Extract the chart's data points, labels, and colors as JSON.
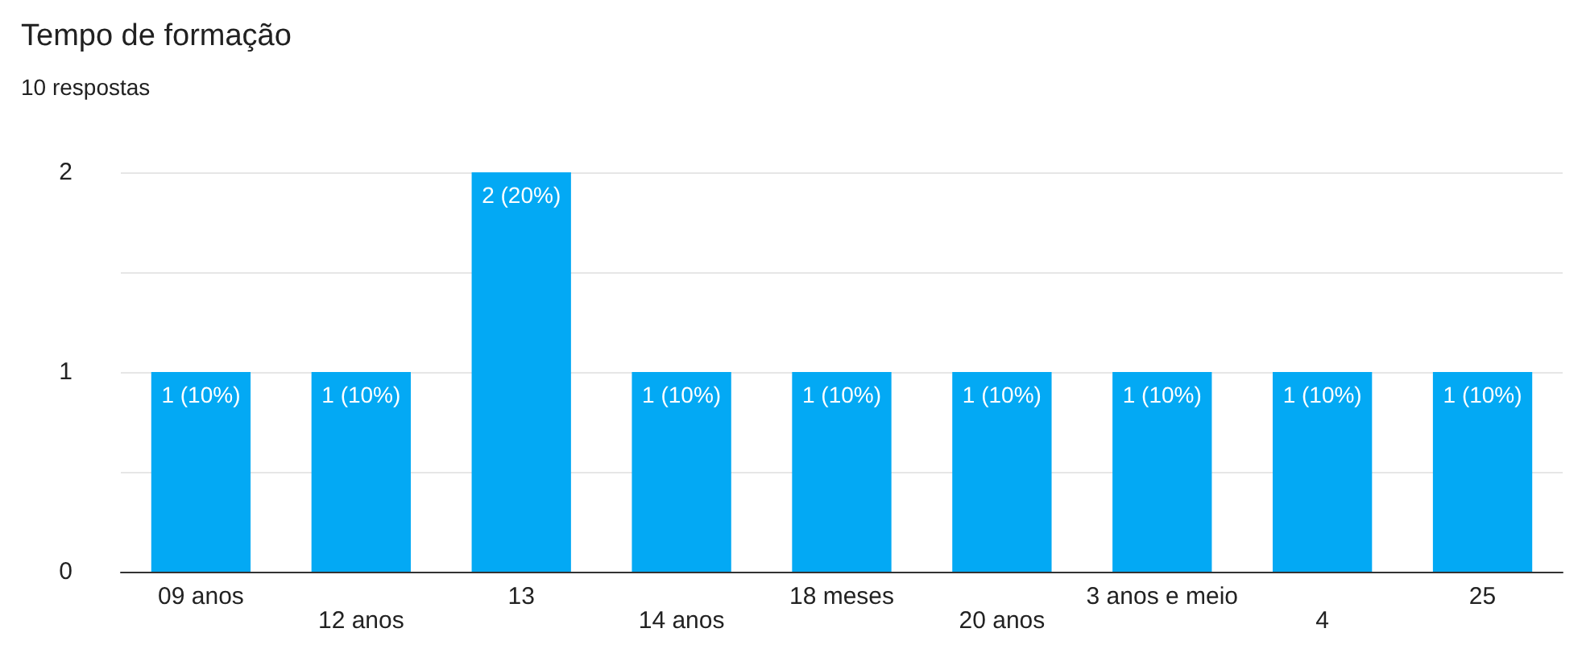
{
  "chart_data": {
    "type": "bar",
    "title": "Tempo de formação",
    "subtitle": "10 respostas",
    "categories": [
      "09 anos",
      "12 anos",
      "13",
      "14 anos",
      "18 meses",
      "20 anos",
      "3 anos e meio",
      "4",
      "25"
    ],
    "values": [
      1,
      1,
      2,
      1,
      1,
      1,
      1,
      1,
      1
    ],
    "value_labels": [
      "1 (10%)",
      "1 (10%)",
      "2 (20%)",
      "1 (10%)",
      "1 (10%)",
      "1 (10%)",
      "1 (10%)",
      "1 (10%)",
      "1 (10%)"
    ],
    "color": "#03a9f4",
    "ylim": [
      0,
      2
    ],
    "yticks": [
      0,
      {
        "value": 0.5,
        "label": null
      },
      1,
      {
        "value": 1.5,
        "label": null
      },
      2
    ],
    "grid": "y"
  }
}
